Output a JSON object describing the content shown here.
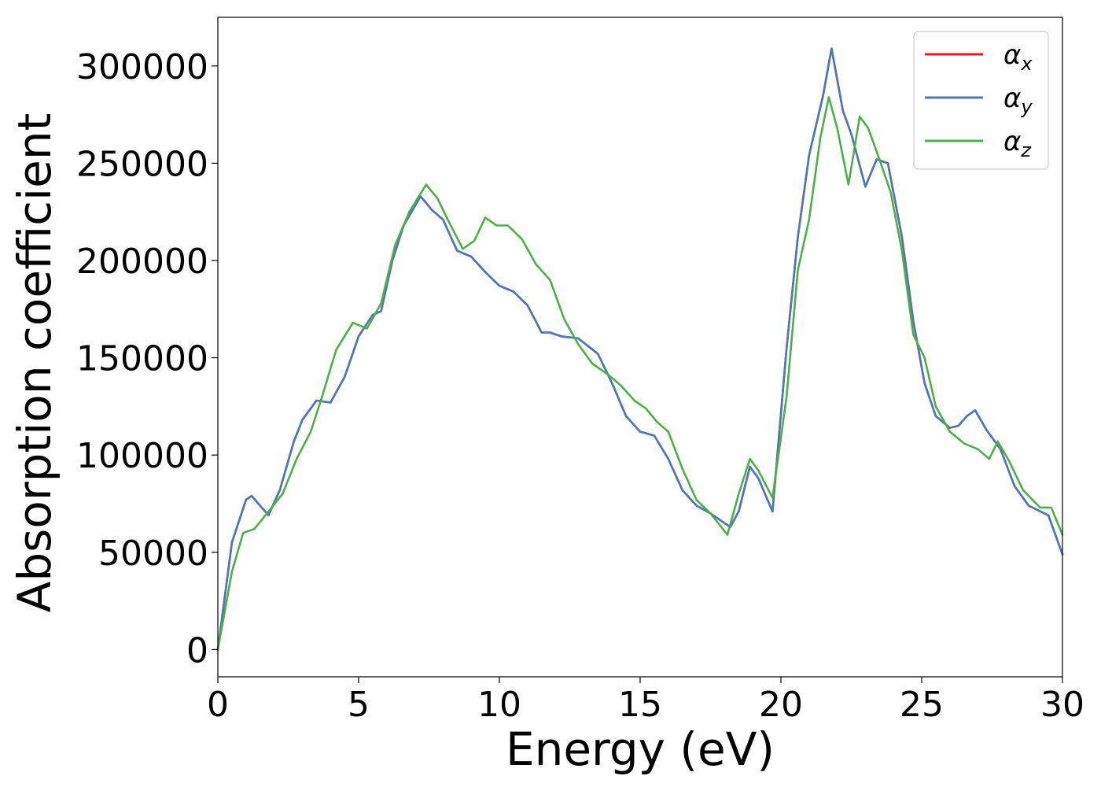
{
  "chart_data": {
    "type": "line",
    "xlabel": "Energy (eV)",
    "ylabel": "Absorption coefficient",
    "xlim": [
      0,
      30
    ],
    "ylim": [
      -14000,
      325000
    ],
    "xticks": [
      0,
      5,
      10,
      15,
      20,
      25,
      30
    ],
    "yticks": [
      0,
      50000,
      100000,
      150000,
      200000,
      250000,
      300000
    ],
    "grid": false,
    "legend_position": "top-right",
    "series": [
      {
        "name": "α",
        "sub": "x",
        "color": "#e41a1c",
        "x": [
          0,
          0.5,
          1.0,
          1.2,
          1.5,
          1.8,
          2.2,
          2.7,
          3.0,
          3.5,
          4.0,
          4.5,
          5.0,
          5.5,
          5.8,
          6.2,
          6.6,
          7.2,
          7.6,
          8.0,
          8.5,
          9.0,
          9.5,
          10.0,
          10.5,
          11.0,
          11.5,
          11.8,
          12.2,
          12.8,
          13.5,
          14.0,
          14.5,
          15.0,
          15.5,
          16.0,
          16.5,
          17.0,
          17.5,
          18.2,
          18.5,
          18.9,
          19.2,
          19.7,
          20.2,
          20.6,
          21.0,
          21.5,
          21.8,
          22.2,
          22.5,
          23.0,
          23.4,
          23.8,
          24.3,
          24.7,
          25.1,
          25.5,
          26.0,
          26.3,
          26.6,
          26.9,
          27.3,
          27.8,
          28.3,
          28.8,
          29.5,
          30.0
        ],
        "y": [
          0,
          55000,
          77000,
          79000,
          74000,
          69000,
          82000,
          107000,
          118000,
          128000,
          127000,
          140000,
          161000,
          172000,
          174000,
          200000,
          218000,
          233000,
          226000,
          221000,
          205000,
          202000,
          194000,
          187000,
          184000,
          177000,
          163000,
          163000,
          161000,
          160000,
          152000,
          137000,
          120000,
          112000,
          110000,
          98000,
          82000,
          74000,
          70000,
          63000,
          71000,
          94000,
          88000,
          71000,
          155000,
          212000,
          254000,
          285000,
          309000,
          277000,
          265000,
          238000,
          252000,
          250000,
          212000,
          169000,
          137000,
          120000,
          114000,
          115000,
          120000,
          123000,
          113000,
          103000,
          84000,
          74000,
          69000,
          49000
        ]
      },
      {
        "name": "α",
        "sub": "y",
        "color": "#4a7ab5",
        "x": [
          0,
          0.5,
          1.0,
          1.2,
          1.5,
          1.8,
          2.2,
          2.7,
          3.0,
          3.5,
          4.0,
          4.5,
          5.0,
          5.5,
          5.8,
          6.2,
          6.6,
          7.2,
          7.6,
          8.0,
          8.5,
          9.0,
          9.5,
          10.0,
          10.5,
          11.0,
          11.5,
          11.8,
          12.2,
          12.8,
          13.5,
          14.0,
          14.5,
          15.0,
          15.5,
          16.0,
          16.5,
          17.0,
          17.5,
          18.2,
          18.5,
          18.9,
          19.2,
          19.7,
          20.2,
          20.6,
          21.0,
          21.5,
          21.8,
          22.2,
          22.5,
          23.0,
          23.4,
          23.8,
          24.3,
          24.7,
          25.1,
          25.5,
          26.0,
          26.3,
          26.6,
          26.9,
          27.3,
          27.8,
          28.3,
          28.8,
          29.5,
          30.0
        ],
        "y": [
          0,
          55000,
          77000,
          79000,
          74000,
          69000,
          82000,
          107000,
          118000,
          128000,
          127000,
          140000,
          161000,
          172000,
          174000,
          200000,
          218000,
          233000,
          226000,
          221000,
          205000,
          202000,
          194000,
          187000,
          184000,
          177000,
          163000,
          163000,
          161000,
          160000,
          152000,
          137000,
          120000,
          112000,
          110000,
          98000,
          82000,
          74000,
          70000,
          63000,
          71000,
          94000,
          88000,
          71000,
          155000,
          212000,
          254000,
          285000,
          309000,
          277000,
          265000,
          238000,
          252000,
          250000,
          212000,
          169000,
          137000,
          120000,
          114000,
          115000,
          120000,
          123000,
          113000,
          103000,
          84000,
          74000,
          69000,
          49000
        ]
      },
      {
        "name": "α",
        "sub": "z",
        "color": "#4daf4a",
        "x": [
          0,
          0.5,
          0.9,
          1.3,
          1.8,
          2.3,
          2.8,
          3.3,
          3.7,
          4.2,
          4.8,
          5.3,
          5.8,
          6.3,
          6.8,
          7.4,
          7.8,
          8.2,
          8.7,
          9.1,
          9.5,
          9.9,
          10.3,
          10.8,
          11.3,
          11.8,
          12.3,
          12.8,
          13.3,
          13.8,
          14.3,
          14.8,
          15.2,
          15.6,
          16.0,
          16.5,
          17.0,
          17.5,
          18.1,
          18.5,
          18.9,
          19.2,
          19.7,
          20.2,
          20.6,
          21.0,
          21.4,
          21.7,
          22.0,
          22.4,
          22.8,
          23.1,
          23.5,
          23.9,
          24.3,
          24.7,
          25.1,
          25.5,
          26.0,
          26.5,
          27.0,
          27.4,
          27.7,
          28.1,
          28.6,
          29.2,
          29.6,
          30.0
        ],
        "y": [
          0,
          40000,
          60000,
          62000,
          71000,
          80000,
          98000,
          112000,
          130000,
          154000,
          168000,
          165000,
          178000,
          208000,
          225000,
          239000,
          232000,
          220000,
          206000,
          210000,
          222000,
          218000,
          218000,
          211000,
          198000,
          190000,
          170000,
          157000,
          147000,
          142000,
          136000,
          128000,
          124000,
          117000,
          112000,
          93000,
          77000,
          70000,
          59000,
          80000,
          98000,
          92000,
          78000,
          130000,
          195000,
          221000,
          263000,
          284000,
          268000,
          239000,
          274000,
          268000,
          252000,
          235000,
          205000,
          162000,
          150000,
          125000,
          112000,
          106000,
          103000,
          98000,
          107000,
          97000,
          82000,
          73000,
          73000,
          59000
        ]
      }
    ]
  }
}
